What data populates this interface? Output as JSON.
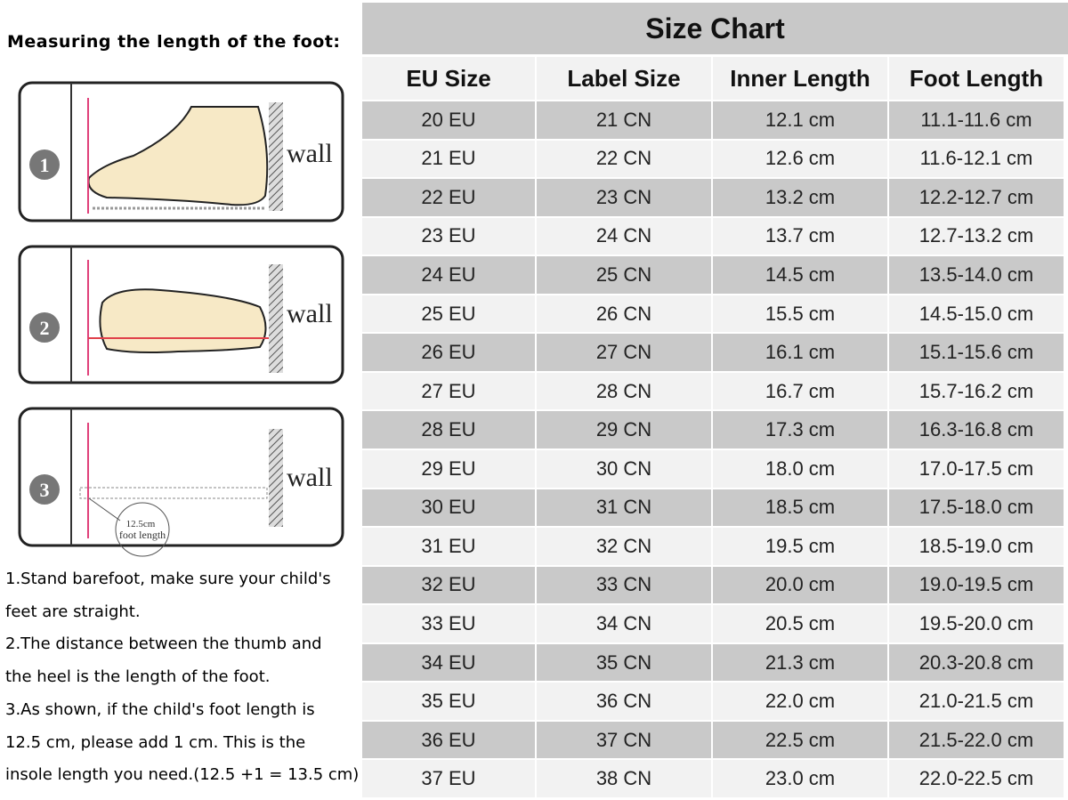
{
  "left": {
    "heading": "Measuring the length of the foot:",
    "diagrams": [
      {
        "number": "1",
        "wall": "wall"
      },
      {
        "number": "2",
        "wall": "wall"
      },
      {
        "number": "3",
        "wall": "wall",
        "measure": "12.5cm",
        "caption": "foot length"
      }
    ],
    "instructions": [
      "1.Stand barefoot, make sure your child's",
      "feet are straight.",
      "2.The distance between the thumb and",
      "the heel is the length of the foot.",
      "3.As shown, if the child's foot length is",
      "12.5 cm, please add 1 cm. This is the",
      "insole length you need.(12.5 +1 = 13.5 cm)"
    ]
  },
  "table": {
    "title": "Size Chart",
    "headers": [
      "EU Size",
      "Label Size",
      "Inner Length",
      "Foot Length"
    ],
    "rows": [
      [
        "20 EU",
        "21 CN",
        "12.1 cm",
        "11.1-11.6 cm"
      ],
      [
        "21 EU",
        "22 CN",
        "12.6 cm",
        "11.6-12.1 cm"
      ],
      [
        "22 EU",
        "23 CN",
        "13.2 cm",
        "12.2-12.7 cm"
      ],
      [
        "23 EU",
        "24 CN",
        "13.7 cm",
        "12.7-13.2 cm"
      ],
      [
        "24 EU",
        "25 CN",
        "14.5 cm",
        "13.5-14.0 cm"
      ],
      [
        "25 EU",
        "26 CN",
        "15.5 cm",
        "14.5-15.0 cm"
      ],
      [
        "26 EU",
        "27 CN",
        "16.1 cm",
        "15.1-15.6 cm"
      ],
      [
        "27 EU",
        "28 CN",
        "16.7 cm",
        "15.7-16.2 cm"
      ],
      [
        "28 EU",
        "29 CN",
        "17.3 cm",
        "16.3-16.8 cm"
      ],
      [
        "29 EU",
        "30 CN",
        "18.0 cm",
        "17.0-17.5 cm"
      ],
      [
        "30 EU",
        "31 CN",
        "18.5 cm",
        "17.5-18.0 cm"
      ],
      [
        "31 EU",
        "32 CN",
        "19.5 cm",
        "18.5-19.0 cm"
      ],
      [
        "32 EU",
        "33 CN",
        "20.0 cm",
        "19.0-19.5 cm"
      ],
      [
        "33 EU",
        "34 CN",
        "20.5 cm",
        "19.5-20.0 cm"
      ],
      [
        "34 EU",
        "35 CN",
        "21.3 cm",
        "20.3-20.8 cm"
      ],
      [
        "35 EU",
        "36 CN",
        "22.0 cm",
        "21.0-21.5 cm"
      ],
      [
        "36 EU",
        "37 CN",
        "22.5 cm",
        "21.5-22.0 cm"
      ],
      [
        "37 EU",
        "38 CN",
        "23.0 cm",
        "22.0-22.5 cm"
      ]
    ]
  }
}
